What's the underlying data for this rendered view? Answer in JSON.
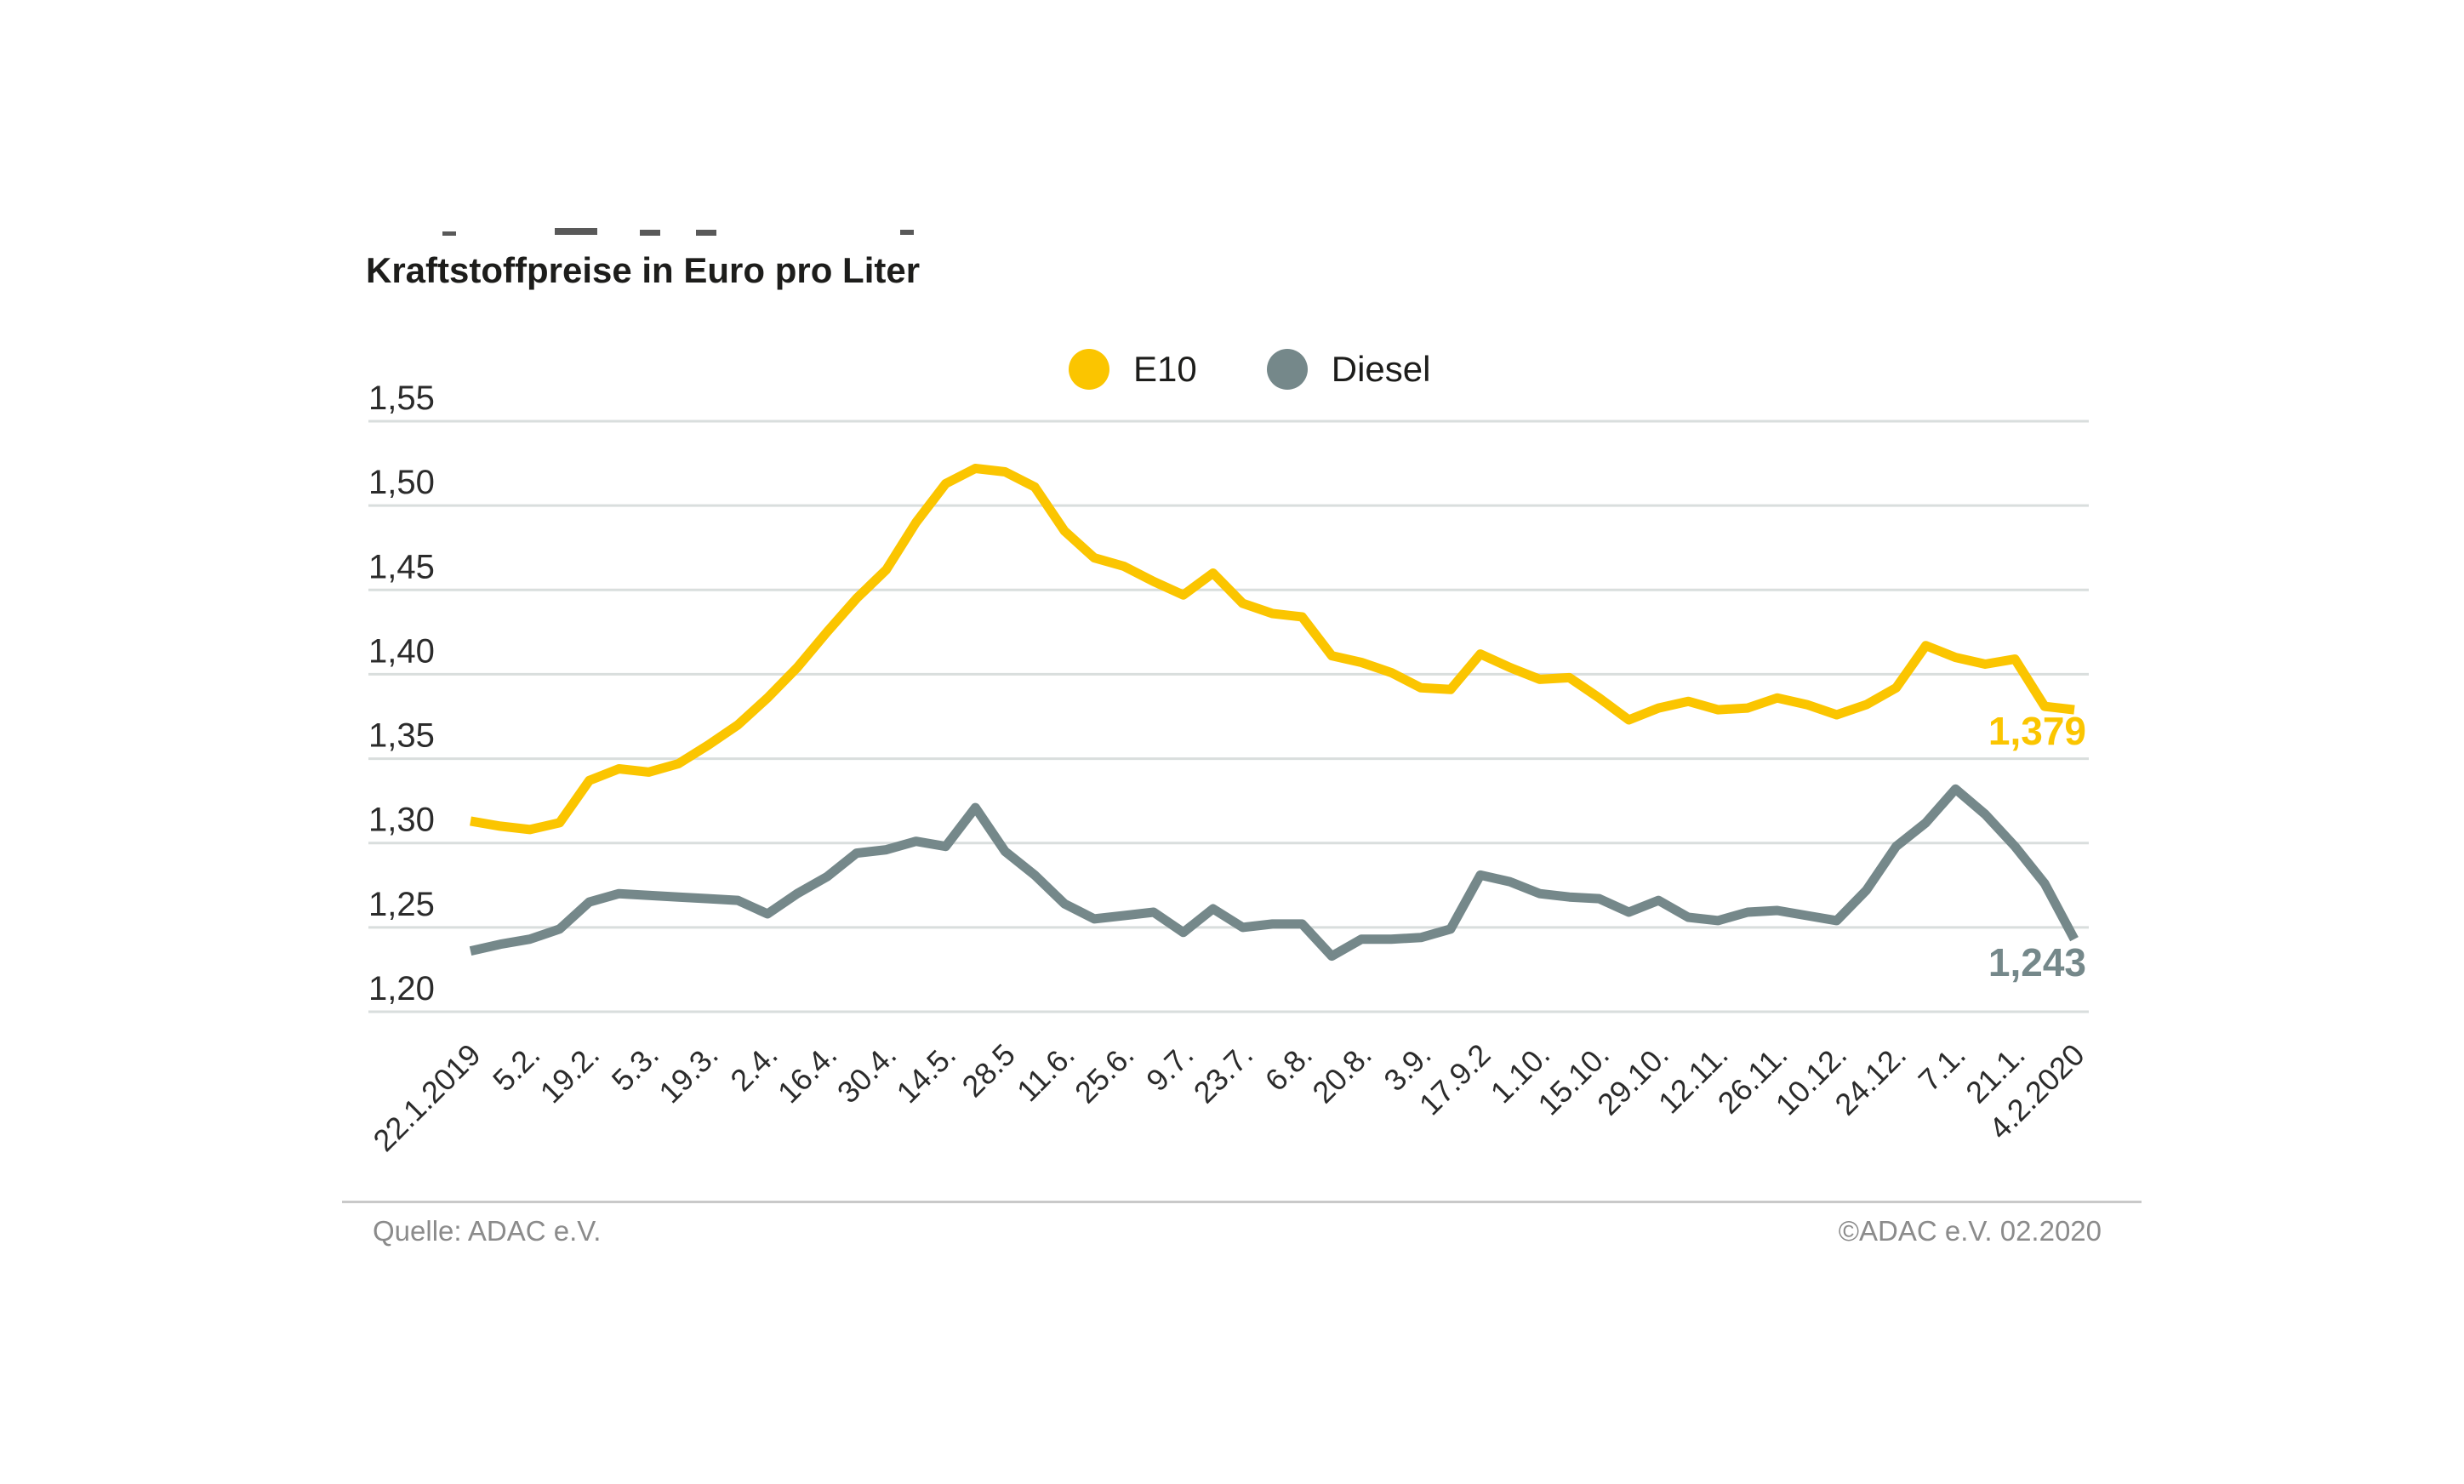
{
  "page": {
    "background": "#ffffff"
  },
  "header": {
    "title": "Kraftstoffpreise in Euro pro Liter"
  },
  "legend": {
    "items": [
      {
        "label": "E10"
      },
      {
        "label": "Diesel"
      }
    ]
  },
  "footer": {
    "source": "Quelle: ADAC e.V.",
    "copyright": "©ADAC e.V.  02.2020"
  },
  "chart_data": {
    "type": "line",
    "title": "Kraftstoffpreise in Euro pro Liter",
    "ylabel": "Euro pro Liter",
    "xlabel": "",
    "grid": true,
    "legend_position": "top-center",
    "y_range": [
      1.2,
      1.55
    ],
    "y_tick_step": 0.05,
    "y_tick_labels": [
      "1,55",
      "1,50",
      "1,45",
      "1,40",
      "1,35",
      "1,30",
      "1,25",
      "1,20"
    ],
    "n_points": 55,
    "points_per_tick": 2,
    "x_first_label": "22.1.2019",
    "x_last_label": "4.2.2020",
    "x_tick_labels": [
      "22.1.2019",
      "5.2.",
      "19.2.",
      "5.3.",
      "19.3.",
      "2.4.",
      "16.4.",
      "30.4.",
      "14.5.",
      "28.5",
      "11.6.",
      "25.6.",
      "9.7.",
      "23.7.",
      "6.8.",
      "20.8.",
      "3.9.",
      "17.9.2",
      "1.10.",
      "15.10.",
      "29.10.",
      "12.11.",
      "26.11.",
      "10.12.",
      "24.12.",
      "7.1.",
      "21.1.",
      "4.2.2020"
    ],
    "series": [
      {
        "name": "E10",
        "color": "#FBC500",
        "end_label": "1,379",
        "end_value": 1.379,
        "values": [
          1.313,
          1.31,
          1.308,
          1.312,
          1.337,
          1.344,
          1.342,
          1.347,
          1.358,
          1.37,
          1.386,
          1.404,
          1.425,
          1.445,
          1.462,
          1.49,
          1.513,
          1.522,
          1.52,
          1.511,
          1.485,
          1.469,
          1.464,
          1.455,
          1.447,
          1.46,
          1.442,
          1.436,
          1.434,
          1.411,
          1.407,
          1.401,
          1.392,
          1.391,
          1.412,
          1.404,
          1.397,
          1.398,
          1.386,
          1.373,
          1.38,
          1.384,
          1.379,
          1.38,
          1.386,
          1.382,
          1.376,
          1.382,
          1.392,
          1.417,
          1.41,
          1.406,
          1.409,
          1.381,
          1.379
        ]
      },
      {
        "name": "Diesel",
        "color": "#75888A",
        "end_label": "1,243",
        "end_value": 1.243,
        "values": [
          1.236,
          1.24,
          1.243,
          1.249,
          1.265,
          1.27,
          1.269,
          1.268,
          1.267,
          1.266,
          1.258,
          1.27,
          1.28,
          1.294,
          1.296,
          1.301,
          1.298,
          1.321,
          1.295,
          1.281,
          1.264,
          1.255,
          1.257,
          1.259,
          1.247,
          1.261,
          1.25,
          1.252,
          1.252,
          1.233,
          1.243,
          1.243,
          1.244,
          1.249,
          1.281,
          1.277,
          1.27,
          1.268,
          1.267,
          1.259,
          1.266,
          1.256,
          1.254,
          1.259,
          1.26,
          1.257,
          1.254,
          1.272,
          1.298,
          1.312,
          1.332,
          1.317,
          1.298,
          1.276,
          1.243
        ]
      }
    ],
    "colors": {
      "grid_line": "#D9DEDD",
      "axis_text": "#2B2B2B",
      "title_text": "#1D1D1B",
      "footer_text": "#8B8B8B",
      "separator": "#C9C9C9"
    }
  }
}
